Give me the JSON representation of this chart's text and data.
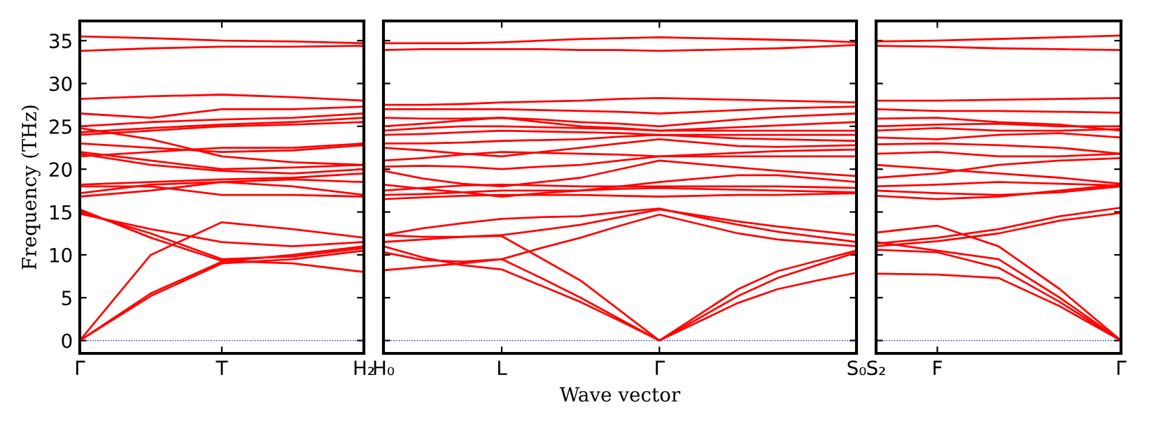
{
  "chart_data": [
    {
      "type": "line",
      "ylabel": "Frequency (THz)",
      "categories": [
        "Γ",
        null,
        "T",
        null,
        "H₂"
      ],
      "ylim": [
        -1.5,
        37.3
      ],
      "yticks": [
        0,
        5,
        10,
        15,
        20,
        25,
        30,
        35
      ],
      "grid": false,
      "marker": "none",
      "line_style": "solid",
      "ref_lines": [
        {
          "axis": "y",
          "value": 0,
          "color": "#0000ff",
          "line_style": "dotted"
        }
      ],
      "series": [
        {
          "color": "#ff0000",
          "values": [
            0,
            5.2,
            9.0,
            9.5,
            10.5
          ]
        },
        {
          "color": "#ff0000",
          "values": [
            0,
            5.5,
            9.2,
            10.0,
            11.0
          ]
        },
        {
          "color": "#ff0000",
          "values": [
            0,
            10.0,
            13.8,
            13.0,
            12.0
          ]
        },
        {
          "color": "#ff0000",
          "values": [
            15.3,
            12.0,
            9.3,
            9.0,
            8.0
          ]
        },
        {
          "color": "#ff0000",
          "values": [
            15.0,
            12.5,
            9.5,
            9.8,
            10.8
          ]
        },
        {
          "color": "#ff0000",
          "values": [
            14.8,
            13.0,
            11.5,
            11.0,
            11.5
          ]
        },
        {
          "color": "#ff0000",
          "values": [
            16.8,
            17.5,
            18.5,
            18.0,
            17.0
          ]
        },
        {
          "color": "#ff0000",
          "values": [
            17.2,
            18.2,
            18.5,
            18.8,
            18.5
          ]
        },
        {
          "color": "#ff0000",
          "values": [
            18.0,
            18.0,
            17.0,
            17.0,
            16.8
          ]
        },
        {
          "color": "#ff0000",
          "values": [
            18.2,
            18.5,
            18.8,
            19.0,
            19.5
          ]
        },
        {
          "color": "#ff0000",
          "values": [
            21.8,
            20.5,
            19.8,
            19.5,
            20.0
          ]
        },
        {
          "color": "#ff0000",
          "values": [
            22.0,
            21.0,
            20.0,
            20.2,
            20.5
          ]
        },
        {
          "color": "#ff0000",
          "values": [
            21.5,
            22.0,
            22.5,
            22.5,
            23.0
          ]
        },
        {
          "color": "#ff0000",
          "values": [
            23.0,
            22.5,
            22.0,
            22.2,
            22.8
          ]
        },
        {
          "color": "#ff0000",
          "values": [
            24.0,
            24.5,
            25.0,
            25.2,
            25.5
          ]
        },
        {
          "color": "#ff0000",
          "values": [
            24.3,
            24.8,
            25.2,
            25.5,
            26.0
          ]
        },
        {
          "color": "#ff0000",
          "values": [
            24.8,
            23.5,
            21.5,
            20.8,
            20.5
          ]
        },
        {
          "color": "#ff0000",
          "values": [
            25.0,
            25.5,
            25.8,
            26.0,
            26.5
          ]
        },
        {
          "color": "#ff0000",
          "values": [
            26.5,
            26.0,
            27.0,
            27.0,
            27.3
          ]
        },
        {
          "color": "#ff0000",
          "values": [
            28.2,
            28.5,
            28.7,
            28.4,
            28.0
          ]
        },
        {
          "color": "#ff0000",
          "values": [
            33.8,
            34.1,
            34.3,
            34.3,
            34.4
          ]
        },
        {
          "color": "#ff0000",
          "values": [
            35.5,
            35.3,
            35.0,
            34.9,
            34.7
          ]
        }
      ]
    },
    {
      "type": "line",
      "xlabel": "Wave vector",
      "categories": [
        "H₀",
        null,
        null,
        "L",
        null,
        null,
        null,
        "Γ",
        null,
        null,
        null,
        null,
        "S₀"
      ],
      "ylim": [
        -1.5,
        37.3
      ],
      "yticks": [
        0,
        5,
        10,
        15,
        20,
        25,
        30,
        35
      ],
      "tick_labels": "x",
      "grid": false,
      "marker": "none",
      "line_style": "solid",
      "ref_lines": [
        {
          "axis": "y",
          "value": 0,
          "color": "#0000ff",
          "line_style": "dotted"
        }
      ],
      "series": [
        {
          "color": "#ff0000",
          "values": [
            12.3,
            12.1,
            12.1,
            12.2,
            9.6,
            7.0,
            3.5,
            0,
            3.0,
            6.0,
            8.1,
            9.3,
            10.5
          ]
        },
        {
          "color": "#ff0000",
          "values": [
            10.3,
            9.4,
            9.2,
            9.5,
            7.3,
            5.0,
            2.5,
            0,
            2.6,
            5.2,
            7.3,
            8.8,
            10.3
          ]
        },
        {
          "color": "#ff0000",
          "values": [
            11.0,
            9.7,
            8.8,
            8.3,
            6.4,
            4.5,
            2.3,
            0,
            2.2,
            4.4,
            6.0,
            7.0,
            7.9
          ]
        },
        {
          "color": "#ff0000",
          "values": [
            8.2,
            8.6,
            9.0,
            9.5,
            10.8,
            12.0,
            13.4,
            14.7,
            13.6,
            12.5,
            11.8,
            11.4,
            11.0
          ]
        },
        {
          "color": "#ff0000",
          "values": [
            11.5,
            11.8,
            12.1,
            12.3,
            12.9,
            13.5,
            14.4,
            15.3,
            14.6,
            13.9,
            13.3,
            12.8,
            12.3
          ]
        },
        {
          "color": "#ff0000",
          "values": [
            12.3,
            13.1,
            13.7,
            14.2,
            14.4,
            14.5,
            15.0,
            15.4,
            14.4,
            13.5,
            12.7,
            12.1,
            11.5
          ]
        },
        {
          "color": "#ff0000",
          "values": [
            16.5,
            16.7,
            16.9,
            17.0,
            17.0,
            17.0,
            16.9,
            16.8,
            16.9,
            17.0,
            17.0,
            17.1,
            17.2
          ]
        },
        {
          "color": "#ff0000",
          "values": [
            17.0,
            17.1,
            17.3,
            17.5,
            17.5,
            17.5,
            17.7,
            17.8,
            17.7,
            17.6,
            17.5,
            17.4,
            17.3
          ]
        },
        {
          "color": "#ff0000",
          "values": [
            17.5,
            17.8,
            18.1,
            18.2,
            18.1,
            18.0,
            18.0,
            18.0,
            18.0,
            18.0,
            18.0,
            17.9,
            17.8
          ]
        },
        {
          "color": "#ff0000",
          "values": [
            18.2,
            17.7,
            17.3,
            16.8,
            17.2,
            17.5,
            18.0,
            18.5,
            18.9,
            19.3,
            19.3,
            18.9,
            18.5
          ]
        },
        {
          "color": "#ff0000",
          "values": [
            19.8,
            18.9,
            18.3,
            18.0,
            18.5,
            19.0,
            20.0,
            21.0,
            20.6,
            20.2,
            19.8,
            19.5,
            19.2
          ]
        },
        {
          "color": "#ff0000",
          "values": [
            20.3,
            20.4,
            20.3,
            20.0,
            20.3,
            20.5,
            21.0,
            21.5,
            21.5,
            21.5,
            21.5,
            21.5,
            21.5
          ]
        },
        {
          "color": "#ff0000",
          "values": [
            21.0,
            21.3,
            21.7,
            22.0,
            21.9,
            21.8,
            21.7,
            21.5,
            21.7,
            21.9,
            22.1,
            22.2,
            22.3
          ]
        },
        {
          "color": "#ff0000",
          "values": [
            22.5,
            22.2,
            21.8,
            21.5,
            22.0,
            22.5,
            23.0,
            23.5,
            23.1,
            22.7,
            22.6,
            22.7,
            22.8
          ]
        },
        {
          "color": "#ff0000",
          "values": [
            23.0,
            23.0,
            23.1,
            23.3,
            23.4,
            23.5,
            23.8,
            24.0,
            23.8,
            23.6,
            23.5,
            23.4,
            23.3
          ]
        },
        {
          "color": "#ff0000",
          "values": [
            24.0,
            24.1,
            24.3,
            24.5,
            24.4,
            24.3,
            24.2,
            24.0,
            24.0,
            24.0,
            24.0,
            24.0,
            24.0
          ]
        },
        {
          "color": "#ff0000",
          "values": [
            24.5,
            24.8,
            25.0,
            25.0,
            24.9,
            24.8,
            24.7,
            24.5,
            24.5,
            24.5,
            24.5,
            24.5,
            24.5
          ]
        },
        {
          "color": "#ff0000",
          "values": [
            25.0,
            25.3,
            25.7,
            26.0,
            25.5,
            25.0,
            24.8,
            24.5,
            24.7,
            24.9,
            25.1,
            25.3,
            25.5
          ]
        },
        {
          "color": "#ff0000",
          "values": [
            26.0,
            25.9,
            25.9,
            26.0,
            25.8,
            25.5,
            25.3,
            25.0,
            25.4,
            25.8,
            26.1,
            26.3,
            26.5
          ]
        },
        {
          "color": "#ff0000",
          "values": [
            27.0,
            27.0,
            27.0,
            27.0,
            26.9,
            26.8,
            26.7,
            26.5,
            26.7,
            26.9,
            27.1,
            27.2,
            27.3
          ]
        },
        {
          "color": "#ff0000",
          "values": [
            27.5,
            27.5,
            27.6,
            27.8,
            27.9,
            28.0,
            28.2,
            28.3,
            28.2,
            28.1,
            28.0,
            27.9,
            27.8
          ]
        },
        {
          "color": "#ff0000",
          "values": [
            33.9,
            34.0,
            34.0,
            34.0,
            34.0,
            33.9,
            33.9,
            33.8,
            33.9,
            34.0,
            34.1,
            34.3,
            34.5
          ]
        },
        {
          "color": "#ff0000",
          "values": [
            34.7,
            34.7,
            34.7,
            34.8,
            35.0,
            35.2,
            35.3,
            35.4,
            35.3,
            35.2,
            35.1,
            35.0,
            34.8
          ]
        }
      ]
    },
    {
      "type": "line",
      "categories": [
        "S₂",
        "F",
        null,
        null,
        "Γ"
      ],
      "ylim": [
        -1.5,
        37.3
      ],
      "yticks": [
        0,
        5,
        10,
        15,
        20,
        25,
        30,
        35
      ],
      "tick_labels": "x",
      "grid": false,
      "marker": "none",
      "line_style": "solid",
      "ref_lines": [
        {
          "axis": "y",
          "value": 0,
          "color": "#0000ff",
          "line_style": "dotted"
        }
      ],
      "series": [
        {
          "color": "#ff0000",
          "values": [
            7.8,
            7.7,
            7.3,
            4.0,
            0
          ]
        },
        {
          "color": "#ff0000",
          "values": [
            10.6,
            10.3,
            8.5,
            4.5,
            0
          ]
        },
        {
          "color": "#ff0000",
          "values": [
            11.5,
            10.5,
            9.5,
            5.0,
            0
          ]
        },
        {
          "color": "#ff0000",
          "values": [
            12.6,
            13.4,
            11.0,
            6.0,
            0
          ]
        },
        {
          "color": "#ff0000",
          "values": [
            11.0,
            11.6,
            12.5,
            14.0,
            14.9
          ]
        },
        {
          "color": "#ff0000",
          "values": [
            11.3,
            12.0,
            13.0,
            14.5,
            15.5
          ]
        },
        {
          "color": "#ff0000",
          "values": [
            16.9,
            16.5,
            16.8,
            17.5,
            18.2
          ]
        },
        {
          "color": "#ff0000",
          "values": [
            17.5,
            17.2,
            17.0,
            17.3,
            18.0
          ]
        },
        {
          "color": "#ff0000",
          "values": [
            18.0,
            18.2,
            18.5,
            18.3,
            18.1
          ]
        },
        {
          "color": "#ff0000",
          "values": [
            19.0,
            19.5,
            20.5,
            21.0,
            21.3
          ]
        },
        {
          "color": "#ff0000",
          "values": [
            20.5,
            20.0,
            19.5,
            19.0,
            18.3
          ]
        },
        {
          "color": "#ff0000",
          "values": [
            21.8,
            22.0,
            21.5,
            21.5,
            21.8
          ]
        },
        {
          "color": "#ff0000",
          "values": [
            22.9,
            23.0,
            22.8,
            22.5,
            21.8
          ]
        },
        {
          "color": "#ff0000",
          "values": [
            23.7,
            23.5,
            24.0,
            24.2,
            23.7
          ]
        },
        {
          "color": "#ff0000",
          "values": [
            24.5,
            24.8,
            24.5,
            24.5,
            24.7
          ]
        },
        {
          "color": "#ff0000",
          "values": [
            25.0,
            25.2,
            25.3,
            25.0,
            25.0
          ]
        },
        {
          "color": "#ff0000",
          "values": [
            25.9,
            26.0,
            25.5,
            25.2,
            24.5
          ]
        },
        {
          "color": "#ff0000",
          "values": [
            27.0,
            26.8,
            26.8,
            26.7,
            26.6
          ]
        },
        {
          "color": "#ff0000",
          "values": [
            28.0,
            28.0,
            28.1,
            28.2,
            28.3
          ]
        },
        {
          "color": "#ff0000",
          "values": [
            34.4,
            34.3,
            34.1,
            34.0,
            33.9
          ]
        },
        {
          "color": "#ff0000",
          "values": [
            34.9,
            35.0,
            35.2,
            35.4,
            35.6
          ]
        }
      ]
    }
  ]
}
